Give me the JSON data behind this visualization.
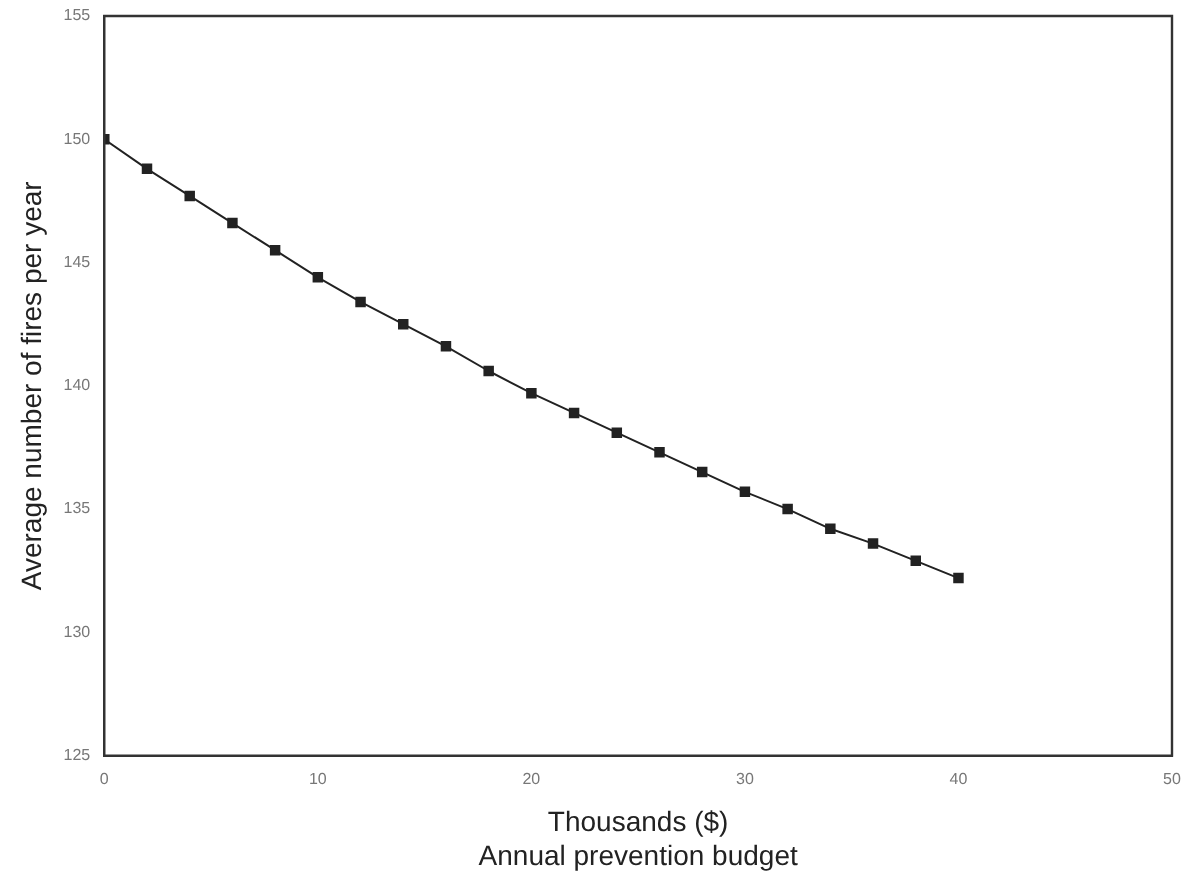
{
  "chart_data": {
    "type": "line",
    "xlabel": "Thousands ($)\nAnnual prevention budget",
    "ylabel": "Average number of fires per year",
    "x": [
      0,
      2,
      4,
      6,
      8,
      10,
      12,
      14,
      16,
      18,
      20,
      22,
      24,
      26,
      28,
      30,
      32,
      34,
      36,
      38,
      40
    ],
    "series": [
      {
        "color": "#222222",
        "values": [
          150,
          148.8,
          147.7,
          146.6,
          145.5,
          144.4,
          143.4,
          142.5,
          141.6,
          140.6,
          139.7,
          138.9,
          138.1,
          137.3,
          136.5,
          135.7,
          135.0,
          134.2,
          133.6,
          132.9,
          132.2
        ]
      }
    ],
    "xlim": [
      0,
      50
    ],
    "xticks": [
      0,
      10,
      20,
      30,
      40,
      50
    ],
    "ylim": [
      125,
      155
    ],
    "yticks": [
      125,
      130,
      135,
      140,
      145,
      150,
      155
    ],
    "grid": false,
    "legend": false,
    "marker": "square",
    "line_style": "solid"
  }
}
